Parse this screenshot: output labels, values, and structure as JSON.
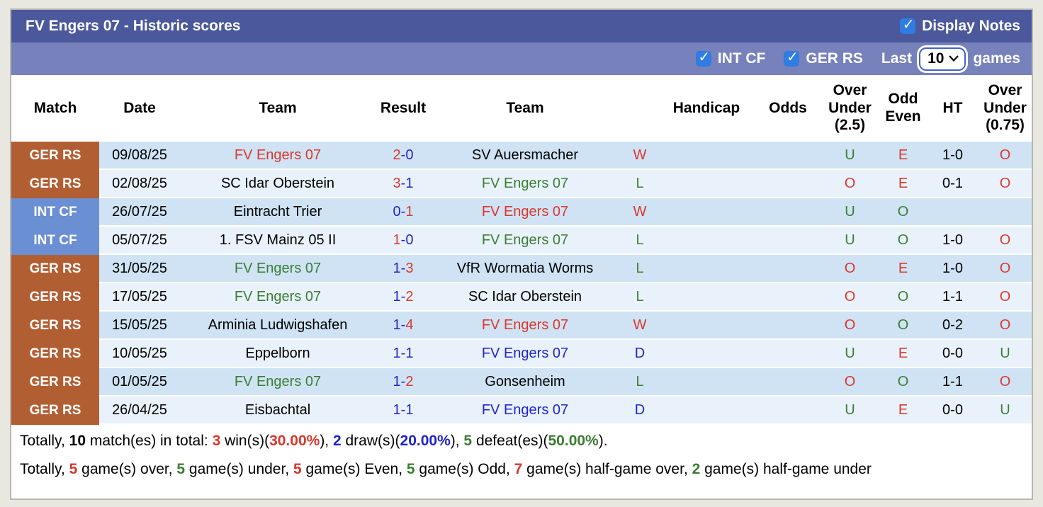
{
  "title": "FV Engers 07 - Historic scores",
  "controls": {
    "display_notes_label": "Display Notes",
    "int_cf_label": "INT CF",
    "ger_rs_label": "GER RS",
    "last_label": "Last",
    "games_count": "10",
    "games_label": "games",
    "display_notes_checked": true,
    "int_cf_checked": true,
    "ger_rs_checked": true
  },
  "colors": {
    "page_bg": "#e8e8e1",
    "bar_top": "#4b599c",
    "bar_filter": "#7781bb",
    "checkbox_blue": "#2f7ce2",
    "select_border": "#3f63c8",
    "league_ger": "#b25e33",
    "league_int": "#6a8fd2",
    "row_dark": "#cfe3f4",
    "row_light": "#e9f2fb",
    "red": "#d9382e",
    "green": "#3c7d33",
    "blue": "#2125c8"
  },
  "table": {
    "headers": [
      "Match",
      "Date",
      "Team",
      "Result",
      "Team",
      "",
      "Handicap",
      "Odds",
      "Over\nUnder\n(2.5)",
      "Odd\nEven",
      "HT",
      "Over\nUnder\n(0.75)"
    ],
    "rows": [
      {
        "league": "GER RS",
        "league_type": "ger",
        "date": "09/08/25",
        "team1": "FV Engers 07",
        "team1_color": "red",
        "score1": "2",
        "score1_color": "red",
        "score2": "0",
        "score2_color": "blue",
        "team2": "SV Auersmacher",
        "team2_color": "black",
        "wdl": "W",
        "wdl_color": "red",
        "handicap": "",
        "odds": "",
        "ou25": "U",
        "ou25_color": "green",
        "oe": "E",
        "oe_color": "red",
        "ht": "1-0",
        "ou075": "O",
        "ou075_color": "red"
      },
      {
        "league": "GER RS",
        "league_type": "ger",
        "date": "02/08/25",
        "team1": "SC Idar Oberstein",
        "team1_color": "black",
        "score1": "3",
        "score1_color": "red",
        "score2": "1",
        "score2_color": "blue",
        "team2": "FV Engers 07",
        "team2_color": "green",
        "wdl": "L",
        "wdl_color": "green",
        "handicap": "",
        "odds": "",
        "ou25": "O",
        "ou25_color": "red",
        "oe": "E",
        "oe_color": "red",
        "ht": "0-1",
        "ou075": "O",
        "ou075_color": "red"
      },
      {
        "league": "INT CF",
        "league_type": "int",
        "date": "26/07/25",
        "team1": "Eintracht Trier",
        "team1_color": "black",
        "score1": "0",
        "score1_color": "blue",
        "score2": "1",
        "score2_color": "red",
        "team2": "FV Engers 07",
        "team2_color": "red",
        "wdl": "W",
        "wdl_color": "red",
        "handicap": "",
        "odds": "",
        "ou25": "U",
        "ou25_color": "green",
        "oe": "O",
        "oe_color": "green",
        "ht": "",
        "ou075": "",
        "ou075_color": "black"
      },
      {
        "league": "INT CF",
        "league_type": "int",
        "date": "05/07/25",
        "team1": "1. FSV Mainz 05 II",
        "team1_color": "black",
        "score1": "1",
        "score1_color": "red",
        "score2": "0",
        "score2_color": "blue",
        "team2": "FV Engers 07",
        "team2_color": "green",
        "wdl": "L",
        "wdl_color": "green",
        "handicap": "",
        "odds": "",
        "ou25": "U",
        "ou25_color": "green",
        "oe": "O",
        "oe_color": "green",
        "ht": "1-0",
        "ou075": "O",
        "ou075_color": "red"
      },
      {
        "league": "GER RS",
        "league_type": "ger",
        "date": "31/05/25",
        "team1": "FV Engers 07",
        "team1_color": "green",
        "score1": "1",
        "score1_color": "blue",
        "score2": "3",
        "score2_color": "red",
        "team2": "VfR Wormatia Worms",
        "team2_color": "black",
        "wdl": "L",
        "wdl_color": "green",
        "handicap": "",
        "odds": "",
        "ou25": "O",
        "ou25_color": "red",
        "oe": "E",
        "oe_color": "red",
        "ht": "1-0",
        "ou075": "O",
        "ou075_color": "red"
      },
      {
        "league": "GER RS",
        "league_type": "ger",
        "date": "17/05/25",
        "team1": "FV Engers 07",
        "team1_color": "green",
        "score1": "1",
        "score1_color": "blue",
        "score2": "2",
        "score2_color": "red",
        "team2": "SC Idar Oberstein",
        "team2_color": "black",
        "wdl": "L",
        "wdl_color": "green",
        "handicap": "",
        "odds": "",
        "ou25": "O",
        "ou25_color": "red",
        "oe": "O",
        "oe_color": "green",
        "ht": "1-1",
        "ou075": "O",
        "ou075_color": "red"
      },
      {
        "league": "GER RS",
        "league_type": "ger",
        "date": "15/05/25",
        "team1": "Arminia Ludwigshafen",
        "team1_color": "black",
        "score1": "1",
        "score1_color": "blue",
        "score2": "4",
        "score2_color": "red",
        "team2": "FV Engers 07",
        "team2_color": "red",
        "wdl": "W",
        "wdl_color": "red",
        "handicap": "",
        "odds": "",
        "ou25": "O",
        "ou25_color": "red",
        "oe": "O",
        "oe_color": "green",
        "ht": "0-2",
        "ou075": "O",
        "ou075_color": "red"
      },
      {
        "league": "GER RS",
        "league_type": "ger",
        "date": "10/05/25",
        "team1": "Eppelborn",
        "team1_color": "black",
        "score1": "1",
        "score1_color": "blue",
        "score2": "1",
        "score2_color": "blue",
        "team2": "FV Engers 07",
        "team2_color": "blue",
        "wdl": "D",
        "wdl_color": "blue",
        "handicap": "",
        "odds": "",
        "ou25": "U",
        "ou25_color": "green",
        "oe": "E",
        "oe_color": "red",
        "ht": "0-0",
        "ou075": "U",
        "ou075_color": "green"
      },
      {
        "league": "GER RS",
        "league_type": "ger",
        "date": "01/05/25",
        "team1": "FV Engers 07",
        "team1_color": "green",
        "score1": "1",
        "score1_color": "blue",
        "score2": "2",
        "score2_color": "red",
        "team2": "Gonsenheim",
        "team2_color": "black",
        "wdl": "L",
        "wdl_color": "green",
        "handicap": "",
        "odds": "",
        "ou25": "O",
        "ou25_color": "red",
        "oe": "O",
        "oe_color": "green",
        "ht": "1-1",
        "ou075": "O",
        "ou075_color": "red"
      },
      {
        "league": "GER RS",
        "league_type": "ger",
        "date": "26/04/25",
        "team1": "Eisbachtal",
        "team1_color": "black",
        "score1": "1",
        "score1_color": "blue",
        "score2": "1",
        "score2_color": "blue",
        "team2": "FV Engers 07",
        "team2_color": "blue",
        "wdl": "D",
        "wdl_color": "blue",
        "handicap": "",
        "odds": "",
        "ou25": "U",
        "ou25_color": "green",
        "oe": "E",
        "oe_color": "red",
        "ht": "0-0",
        "ou075": "U",
        "ou075_color": "green"
      }
    ]
  },
  "summary_lines": [
    [
      {
        "t": "Totally, ",
        "c": "black",
        "b": false
      },
      {
        "t": "10",
        "c": "black",
        "b": true
      },
      {
        "t": " match(es) in total: ",
        "c": "black",
        "b": false
      },
      {
        "t": "3",
        "c": "red",
        "b": true
      },
      {
        "t": " win(s)(",
        "c": "black",
        "b": false
      },
      {
        "t": "30.00%",
        "c": "red",
        "b": true
      },
      {
        "t": "), ",
        "c": "black",
        "b": false
      },
      {
        "t": "2",
        "c": "blue",
        "b": true
      },
      {
        "t": " draw(s)(",
        "c": "black",
        "b": false
      },
      {
        "t": "20.00%",
        "c": "blue",
        "b": true
      },
      {
        "t": "), ",
        "c": "black",
        "b": false
      },
      {
        "t": "5",
        "c": "green",
        "b": true
      },
      {
        "t": " defeat(es)(",
        "c": "black",
        "b": false
      },
      {
        "t": "50.00%",
        "c": "green",
        "b": true
      },
      {
        "t": ").",
        "c": "black",
        "b": false
      }
    ],
    [
      {
        "t": "Totally, ",
        "c": "black",
        "b": false
      },
      {
        "t": "5",
        "c": "red",
        "b": true
      },
      {
        "t": " game(s) over, ",
        "c": "black",
        "b": false
      },
      {
        "t": "5",
        "c": "green",
        "b": true
      },
      {
        "t": " game(s) under, ",
        "c": "black",
        "b": false
      },
      {
        "t": "5",
        "c": "red",
        "b": true
      },
      {
        "t": " game(s) Even, ",
        "c": "black",
        "b": false
      },
      {
        "t": "5",
        "c": "green",
        "b": true
      },
      {
        "t": " game(s) Odd, ",
        "c": "black",
        "b": false
      },
      {
        "t": "7",
        "c": "red",
        "b": true
      },
      {
        "t": " game(s) half-game over, ",
        "c": "black",
        "b": false
      },
      {
        "t": "2",
        "c": "green",
        "b": true
      },
      {
        "t": " game(s) half-game under",
        "c": "black",
        "b": false
      }
    ]
  ]
}
